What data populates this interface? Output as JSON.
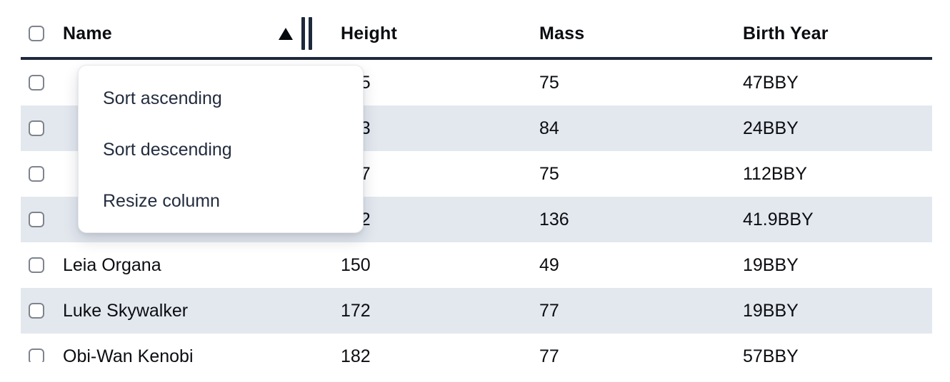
{
  "table": {
    "columns": [
      {
        "key": "name",
        "label": "Name"
      },
      {
        "key": "height",
        "label": "Height"
      },
      {
        "key": "mass",
        "label": "Mass"
      },
      {
        "key": "birth_year",
        "label": "Birth Year"
      }
    ],
    "sort": {
      "column": "Name",
      "direction": "ascending"
    },
    "rows": [
      {
        "name": "",
        "height": "165",
        "mass": "75",
        "birth_year": "47BBY"
      },
      {
        "name": "",
        "height": "183",
        "mass": "84",
        "birth_year": "24BBY"
      },
      {
        "name": "",
        "height": "167",
        "mass": "75",
        "birth_year": "112BBY"
      },
      {
        "name": "",
        "height": "202",
        "mass": "136",
        "birth_year": "41.9BBY"
      },
      {
        "name": "Leia Organa",
        "height": "150",
        "mass": "49",
        "birth_year": "19BBY"
      },
      {
        "name": "Luke Skywalker",
        "height": "172",
        "mass": "77",
        "birth_year": "19BBY"
      },
      {
        "name": "Obi-Wan Kenobi",
        "height": "182",
        "mass": "77",
        "birth_year": "57BBY"
      }
    ]
  },
  "context_menu": {
    "items": [
      {
        "label": "Sort ascending"
      },
      {
        "label": "Sort descending"
      },
      {
        "label": "Resize column"
      }
    ]
  },
  "colors": {
    "header_border": "#1e293b",
    "row_stripe": "#e3e8ef",
    "menu_text": "#232d3f",
    "checkbox_border": "#7e848e"
  }
}
